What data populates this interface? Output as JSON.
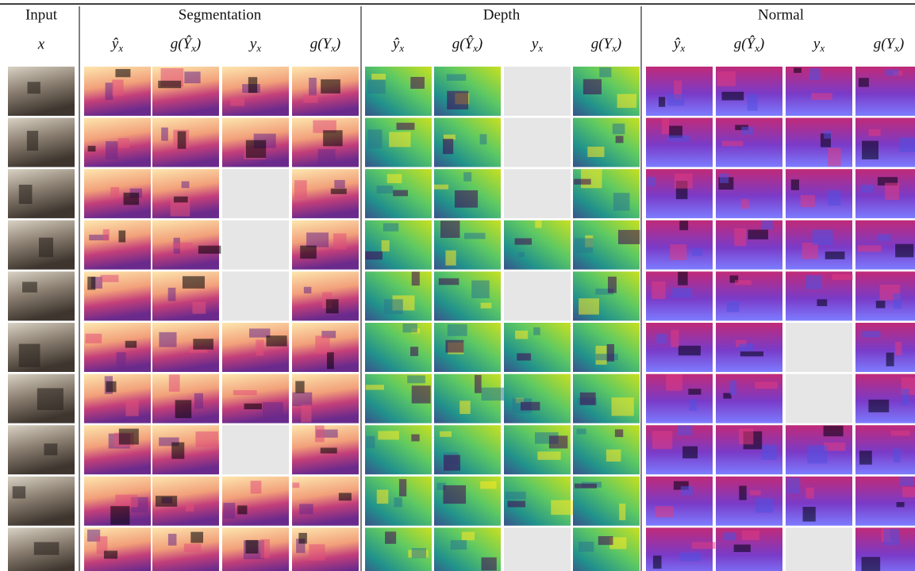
{
  "header": {
    "input": {
      "title": "Input",
      "symbol": "x"
    },
    "groups": [
      {
        "title": "Segmentation"
      },
      {
        "title": "Depth"
      },
      {
        "title": "Normal"
      }
    ],
    "columns": [
      {
        "pre": "ŷ",
        "sub": "x"
      },
      {
        "pre": "g(Ŷ",
        "sub": "x",
        "post": ")"
      },
      {
        "pre": "y",
        "sub": "x"
      },
      {
        "pre": "g(Y",
        "sub": "x",
        "post": ")"
      }
    ]
  }
}
